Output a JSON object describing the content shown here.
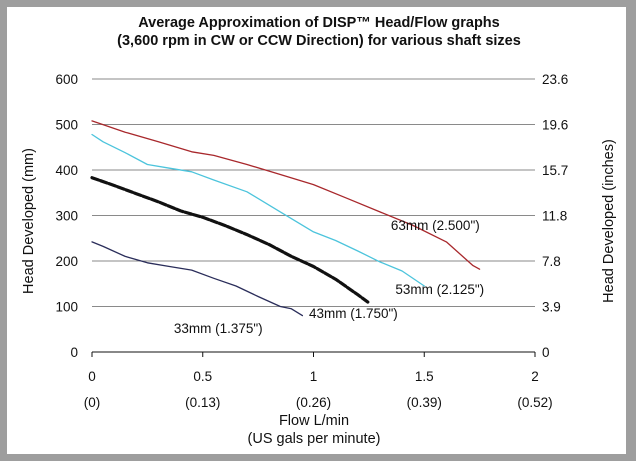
{
  "chart_data": {
    "type": "line",
    "title": "Average Approximation of DISP™ Head/Flow graphs",
    "subtitle": "(3,600 rpm in CW or CCW Direction) for various shaft sizes",
    "xlabel": "Flow L/min",
    "xlabel2": "(US gals per minute)",
    "ylabel": "Head Developed (mm)",
    "ylabel_right": "Head Developed (inches)",
    "xlim": [
      0,
      2
    ],
    "ylim": [
      0,
      600
    ],
    "x_ticks": [
      {
        "value": 0,
        "label": "0",
        "sub": "(0)"
      },
      {
        "value": 0.5,
        "label": "0.5",
        "sub": "(0.13)"
      },
      {
        "value": 1,
        "label": "1",
        "sub": "(0.26)"
      },
      {
        "value": 1.5,
        "label": "1.5",
        "sub": "(0.39)"
      },
      {
        "value": 2,
        "label": "2",
        "sub": "(0.52)"
      }
    ],
    "y_ticks": [
      {
        "value": 0,
        "label": "0",
        "right": "0"
      },
      {
        "value": 100,
        "label": "100",
        "right": "3.9"
      },
      {
        "value": 200,
        "label": "200",
        "right": "7.8"
      },
      {
        "value": 300,
        "label": "300",
        "right": "11.8"
      },
      {
        "value": 400,
        "label": "400",
        "right": "15.7"
      },
      {
        "value": 500,
        "label": "500",
        "right": "19.6"
      },
      {
        "value": 600,
        "label": "600",
        "right": "23.6"
      }
    ],
    "grid": true,
    "series": [
      {
        "name": "63mm (2.500\")",
        "color": "#a8282c",
        "style": "solid",
        "label_at": {
          "x": 1.55,
          "y": 268
        },
        "points": [
          [
            0,
            508
          ],
          [
            0.15,
            483
          ],
          [
            0.3,
            462
          ],
          [
            0.45,
            440
          ],
          [
            0.55,
            432
          ],
          [
            0.7,
            412
          ],
          [
            0.85,
            390
          ],
          [
            1.0,
            368
          ],
          [
            1.15,
            338
          ],
          [
            1.3,
            308
          ],
          [
            1.45,
            278
          ],
          [
            1.6,
            242
          ],
          [
            1.72,
            190
          ],
          [
            1.75,
            182
          ]
        ]
      },
      {
        "name": "53mm (2.125\")",
        "color": "#4cc4dc",
        "style": "solid",
        "label_at": {
          "x": 1.57,
          "y": 128
        },
        "points": [
          [
            0,
            478
          ],
          [
            0.05,
            462
          ],
          [
            0.15,
            438
          ],
          [
            0.25,
            412
          ],
          [
            0.35,
            404
          ],
          [
            0.45,
            396
          ],
          [
            0.55,
            378
          ],
          [
            0.7,
            352
          ],
          [
            0.85,
            308
          ],
          [
            1.0,
            264
          ],
          [
            1.1,
            245
          ],
          [
            1.2,
            222
          ],
          [
            1.3,
            198
          ],
          [
            1.4,
            178
          ],
          [
            1.5,
            145
          ]
        ]
      },
      {
        "name": "43mm (1.750\")",
        "color": "#111111",
        "style": "dashed",
        "label_at": {
          "x": 1.18,
          "y": 75
        },
        "points": [
          [
            0,
            383
          ],
          [
            0.1,
            366
          ],
          [
            0.2,
            348
          ],
          [
            0.3,
            330
          ],
          [
            0.4,
            310
          ],
          [
            0.5,
            296
          ],
          [
            0.6,
            278
          ],
          [
            0.7,
            258
          ],
          [
            0.8,
            236
          ],
          [
            0.9,
            210
          ],
          [
            1.0,
            188
          ],
          [
            1.1,
            160
          ],
          [
            1.2,
            126
          ],
          [
            1.25,
            108
          ]
        ]
      },
      {
        "name": "33mm (1.375\")",
        "color": "#2a2d5a",
        "style": "solid",
        "label_at": {
          "x": 0.57,
          "y": 42
        },
        "points": [
          [
            0,
            242
          ],
          [
            0.05,
            232
          ],
          [
            0.15,
            210
          ],
          [
            0.25,
            196
          ],
          [
            0.35,
            188
          ],
          [
            0.45,
            180
          ],
          [
            0.55,
            162
          ],
          [
            0.65,
            145
          ],
          [
            0.75,
            122
          ],
          [
            0.85,
            100
          ],
          [
            0.9,
            95
          ],
          [
            0.95,
            80
          ]
        ]
      }
    ]
  }
}
